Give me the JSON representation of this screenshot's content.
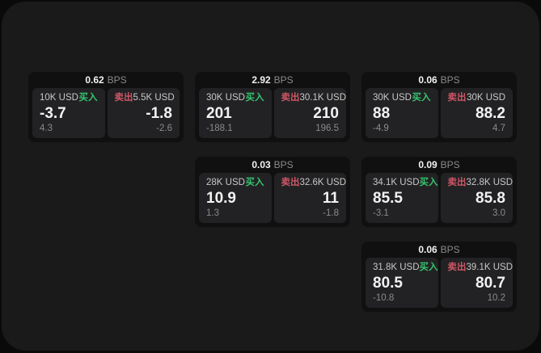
{
  "labels": {
    "bps": "BPS",
    "buy": "买入",
    "sell": "卖出"
  },
  "colors": {
    "page-bg": "#0a0a0a",
    "panel-bg": "#1a1a1b",
    "card-bg": "#101011",
    "tile-bg": "#222224",
    "text-bright": "#f2f2f2",
    "text-label": "#c8c8c8",
    "text-muted": "#8a8a8a",
    "buy-green": "#35c56f",
    "sell-red": "#cf5666"
  },
  "cards": [
    {
      "bps": "0.62",
      "buy": {
        "amount": "10K USD",
        "price": "-3.7",
        "sub": "4.3"
      },
      "sell": {
        "amount": "5.5K USD",
        "price": "-1.8",
        "sub": "-2.6"
      }
    },
    {
      "bps": "2.92",
      "buy": {
        "amount": "30K USD",
        "price": "201",
        "sub": "-188.1"
      },
      "sell": {
        "amount": "30.1K USD",
        "price": "210",
        "sub": "196.5"
      }
    },
    {
      "bps": "0.06",
      "buy": {
        "amount": "30K USD",
        "price": "88",
        "sub": "-4.9"
      },
      "sell": {
        "amount": "30K USD",
        "price": "88.2",
        "sub": "4.7"
      }
    },
    {
      "bps": "0.03",
      "buy": {
        "amount": "28K USD",
        "price": "10.9",
        "sub": "1.3"
      },
      "sell": {
        "amount": "32.6K USD",
        "price": "11",
        "sub": "-1.8"
      }
    },
    {
      "bps": "0.09",
      "buy": {
        "amount": "34.1K USD",
        "price": "85.5",
        "sub": "-3.1"
      },
      "sell": {
        "amount": "32.8K USD",
        "price": "85.8",
        "sub": "3.0"
      }
    },
    {
      "bps": "0.06",
      "buy": {
        "amount": "31.8K USD",
        "price": "80.5",
        "sub": "-10.8"
      },
      "sell": {
        "amount": "39.1K USD",
        "price": "80.7",
        "sub": "10.2"
      }
    }
  ]
}
